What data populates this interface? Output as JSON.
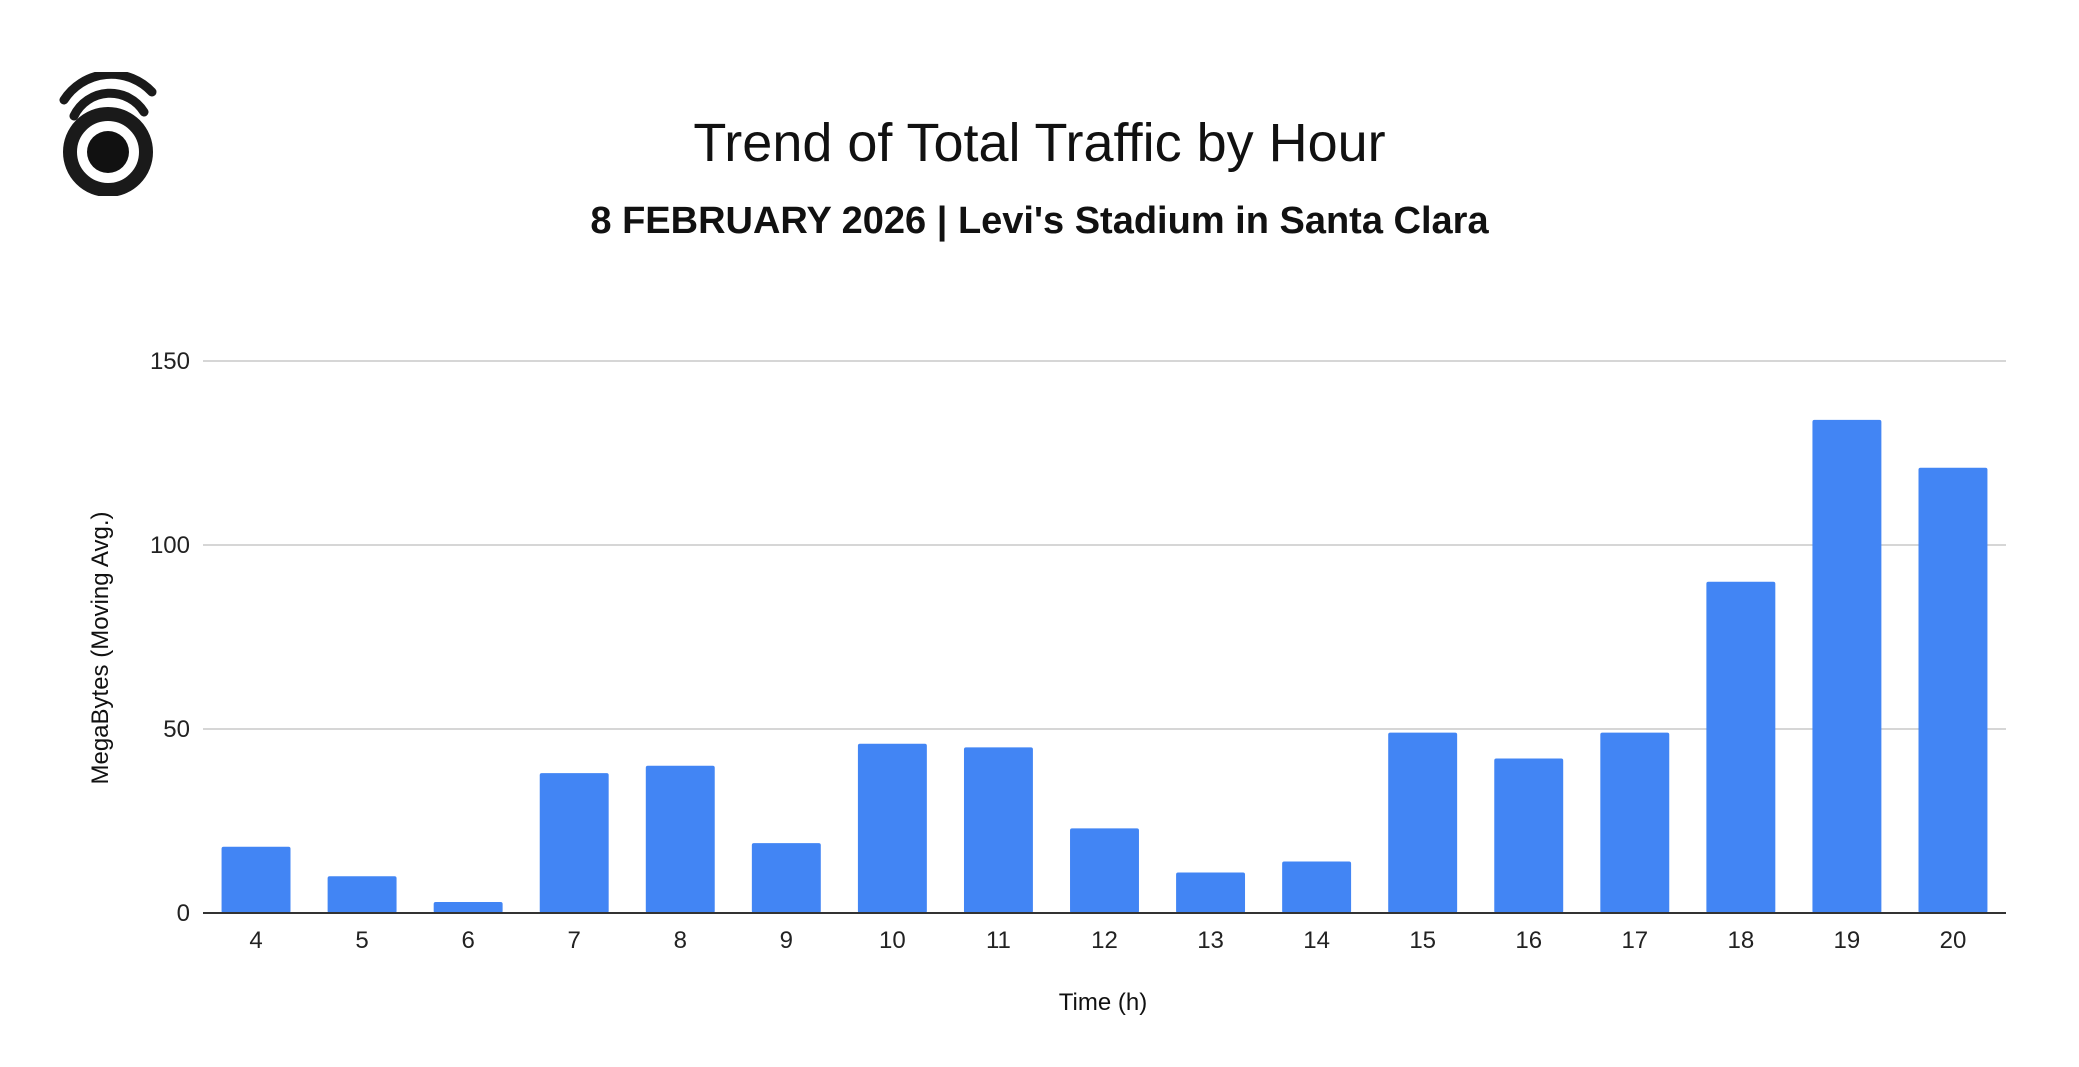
{
  "logo": {
    "icon": "wifi-signal-logo-icon"
  },
  "chart_data": {
    "type": "bar",
    "title": "Trend of Total Traffic by Hour",
    "subtitle": "8 FEBRUARY 2026 | Levi's Stadium in Santa Clara",
    "xlabel": "Time (h)",
    "ylabel": "MegaBytes (Moving Avg.)",
    "ylim": [
      0,
      150
    ],
    "yticks": [
      0,
      50,
      100,
      150
    ],
    "grid": true,
    "bar_color": "#4285f4",
    "categories": [
      "4",
      "5",
      "6",
      "7",
      "8",
      "9",
      "10",
      "11",
      "12",
      "13",
      "14",
      "15",
      "16",
      "17",
      "18",
      "19",
      "20"
    ],
    "values": [
      18,
      10,
      3,
      38,
      40,
      19,
      46,
      45,
      23,
      11,
      14,
      49,
      42,
      49,
      90,
      134,
      121
    ]
  }
}
